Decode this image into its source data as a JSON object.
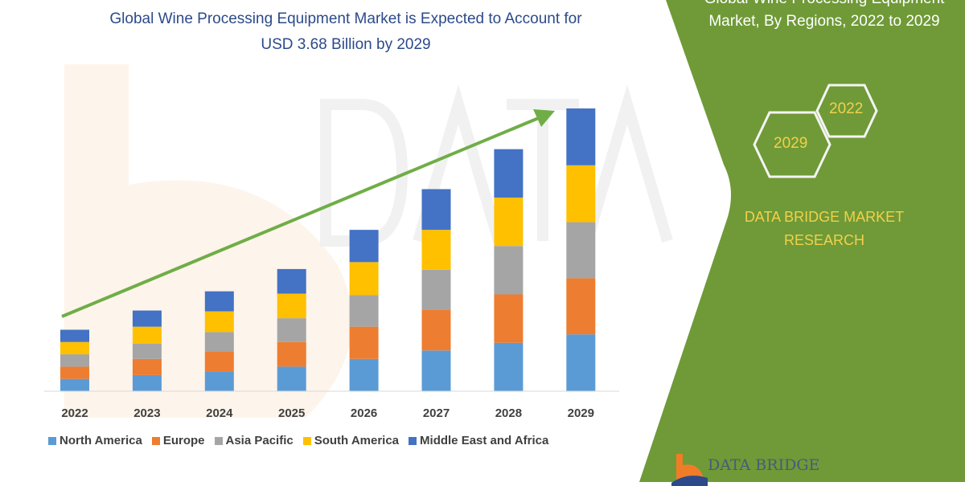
{
  "title": {
    "line1": "Global Wine Processing Equipment Market is Expected to Account for",
    "line2": "USD 3.68 Billion by 2029"
  },
  "side_panel": {
    "title_line1": "Global Wine Processing Equipment",
    "title_line2": "Market, By Regions, 2022 to 2029",
    "hex_years": [
      "2029",
      "2022"
    ],
    "brand_line1": "DATA BRIDGE MARKET",
    "brand_line2": "RESEARCH",
    "logo_text": "DATA BRIDGE",
    "color": "#6f9a37",
    "text_accent": "#f2d04b"
  },
  "chart_data": {
    "type": "bar",
    "stacked": true,
    "title": "Global Wine Processing Equipment Market is Expected to Account for USD 3.68 Billion by 2029",
    "xlabel": "",
    "ylabel": "",
    "ylim": [
      0,
      3.68
    ],
    "grid": false,
    "legend_position": "bottom",
    "trend_arrow": true,
    "categories": [
      "2022",
      "2023",
      "2024",
      "2025",
      "2026",
      "2027",
      "2028",
      "2029"
    ],
    "series": [
      {
        "name": "North America",
        "color": "#5b9bd5",
        "values": [
          0.16,
          0.21,
          0.26,
          0.32,
          0.42,
          0.53,
          0.63,
          0.74
        ]
      },
      {
        "name": "Europe",
        "color": "#ed7d31",
        "values": [
          0.16,
          0.21,
          0.26,
          0.32,
          0.42,
          0.53,
          0.63,
          0.73
        ]
      },
      {
        "name": "Asia Pacific",
        "color": "#a5a5a5",
        "values": [
          0.16,
          0.2,
          0.25,
          0.31,
          0.41,
          0.52,
          0.63,
          0.73
        ]
      },
      {
        "name": "South America",
        "color": "#ffc000",
        "values": [
          0.16,
          0.22,
          0.27,
          0.32,
          0.43,
          0.52,
          0.63,
          0.74
        ]
      },
      {
        "name": "Middle East and Africa",
        "color": "#4472c4",
        "values": [
          0.16,
          0.21,
          0.26,
          0.32,
          0.42,
          0.53,
          0.63,
          0.74
        ]
      }
    ]
  }
}
